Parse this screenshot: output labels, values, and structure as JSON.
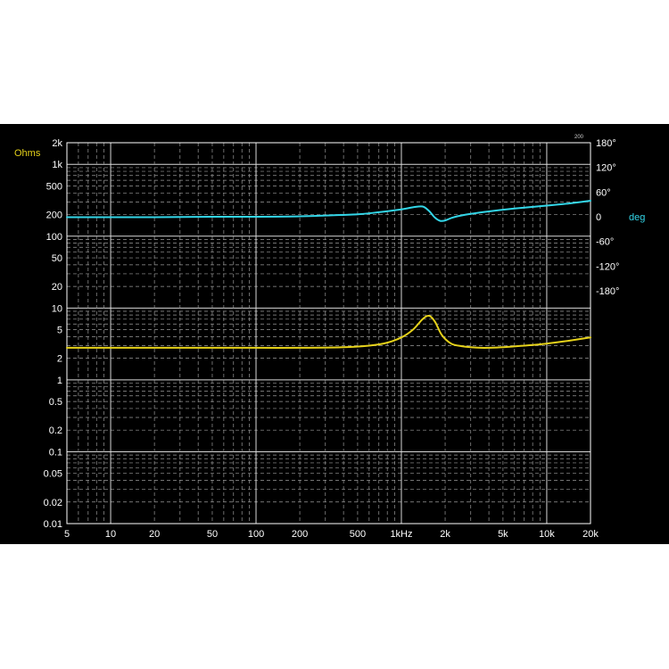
{
  "chart_data": {
    "type": "line",
    "title": "",
    "corner_label": "200",
    "left_axis": {
      "unit_label": "Ohms",
      "unit_color": "#e6d21a",
      "scale": "log",
      "range": [
        0.01,
        2000
      ],
      "tick_values": [
        2000,
        1000,
        500,
        200,
        100,
        50,
        20,
        10,
        5,
        2,
        1,
        0.5,
        0.2,
        0.1,
        0.05,
        0.02,
        0.01
      ],
      "tick_labels": [
        "2k",
        "1k",
        "500",
        "200",
        "100",
        "50",
        "20",
        "10",
        "5",
        "2",
        "1",
        "0.5",
        "0.2",
        "0.1",
        "0.05",
        "0.02",
        "0.01"
      ]
    },
    "right_axis": {
      "unit_label": "deg",
      "unit_color": "#33d6e8",
      "tick_labels": [
        "180°",
        "120°",
        "60°",
        "0",
        "-60°",
        "-120°",
        "-180°"
      ],
      "tick_values": [
        180,
        120,
        60,
        0,
        -60,
        -120,
        -180
      ]
    },
    "x_axis": {
      "scale": "log",
      "range": [
        5,
        20000
      ],
      "tick_values": [
        5,
        10,
        20,
        50,
        100,
        200,
        500,
        1000,
        2000,
        5000,
        10000,
        20000
      ],
      "tick_labels": [
        "5",
        "10",
        "20",
        "50",
        "100",
        "200",
        "500",
        "1kHz",
        "2k",
        "5k",
        "10k",
        "20k"
      ]
    },
    "grid": true,
    "series": [
      {
        "color": "#e6d21a",
        "axis": "left",
        "x": [
          5,
          10,
          20,
          50,
          100,
          200,
          400,
          600,
          800,
          1000,
          1200,
          1400,
          1550,
          1700,
          1900,
          2200,
          2600,
          3000,
          3500,
          4000,
          5000,
          7000,
          10000,
          14000,
          20000
        ],
        "y": [
          2.8,
          2.8,
          2.8,
          2.8,
          2.8,
          2.8,
          2.85,
          3.0,
          3.3,
          3.9,
          5.0,
          7.0,
          7.8,
          6.5,
          4.2,
          3.2,
          2.95,
          2.85,
          2.8,
          2.8,
          2.85,
          3.0,
          3.2,
          3.5,
          3.9
        ]
      },
      {
        "color": "#33d6e8",
        "axis": "right",
        "x": [
          5,
          10,
          20,
          50,
          100,
          200,
          300,
          500,
          700,
          1000,
          1200,
          1400,
          1550,
          1700,
          1850,
          2000,
          2300,
          3000,
          4000,
          6000,
          10000,
          14000,
          20000
        ],
        "y": [
          -1,
          -1,
          -1,
          0,
          0,
          1,
          3,
          6,
          11,
          18,
          23,
          25,
          14,
          -2,
          -10,
          -9,
          -1,
          7,
          13,
          20,
          27,
          32,
          39
        ]
      }
    ]
  }
}
